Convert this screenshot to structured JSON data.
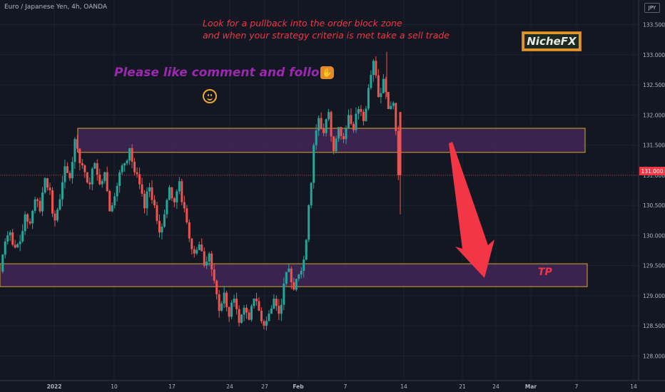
{
  "header": {
    "symbol": "Euro / Japanese Yen, 4h, OANDA",
    "currency": "JPY"
  },
  "annotations": {
    "pullback_line1": "Look for a pullback into the order block zone",
    "pullback_line2": "and when your strategy criteria is met take a sell trade",
    "like_text": "Please like comment and follow",
    "brand": "NicheFX",
    "tp_label": "TP",
    "thumb_icon": "thumbs-up-icon",
    "smiley_icon": "smiley-icon"
  },
  "colors": {
    "background": "#131722",
    "up": "#26a69a",
    "down": "#ef5350",
    "zone_fill": "#4a2860",
    "zone_border": "#d9a62b",
    "arrow": "#f23645",
    "price_line": "#f23645",
    "grid": "#1e222d",
    "axis_text": "#b2b5be"
  },
  "chart_data": {
    "type": "candlestick",
    "title": "Euro / Japanese Yen, 4h, OANDA",
    "x_tick_labels": [
      "2022",
      "10",
      "17",
      "24",
      "27",
      "Feb",
      "7",
      "14",
      "21",
      "24",
      "Mar",
      "7",
      "14"
    ],
    "y_tick_labels": [
      "133.500",
      "133.000",
      "132.500",
      "132.000",
      "131.500",
      "131.000",
      "130.500",
      "130.000",
      "129.500",
      "129.000",
      "128.500",
      "128.000"
    ],
    "ylim": [
      127.85,
      133.65
    ],
    "current_price": 131.0,
    "current_price_label": "131.000",
    "zones": [
      {
        "name": "order block zone",
        "top": 131.78,
        "bottom": 131.38
      },
      {
        "name": "TP zone",
        "top": 129.53,
        "bottom": 129.15
      }
    ],
    "prices_approx": [
      [
        129.4,
        129.9
      ],
      [
        129.9,
        130.05
      ],
      [
        130.05,
        129.8
      ],
      [
        129.8,
        129.9
      ],
      [
        129.9,
        130.35
      ],
      [
        130.35,
        130.2
      ],
      [
        130.2,
        130.6
      ],
      [
        130.6,
        130.4
      ],
      [
        130.4,
        130.95
      ],
      [
        130.95,
        130.75
      ],
      [
        130.75,
        130.25
      ],
      [
        130.25,
        130.6
      ],
      [
        130.6,
        131.15
      ],
      [
        131.15,
        130.95
      ],
      [
        130.95,
        131.6
      ],
      [
        131.6,
        131.2
      ],
      [
        131.2,
        131.05
      ],
      [
        131.05,
        130.85
      ],
      [
        130.85,
        131.2
      ],
      [
        131.2,
        130.85
      ],
      [
        130.85,
        131.05
      ],
      [
        131.05,
        130.4
      ],
      [
        130.4,
        130.65
      ],
      [
        130.65,
        131.05
      ],
      [
        131.05,
        131.2
      ],
      [
        131.2,
        131.45
      ],
      [
        131.45,
        131.05
      ],
      [
        131.05,
        130.85
      ],
      [
        130.85,
        130.45
      ],
      [
        130.45,
        130.8
      ],
      [
        130.8,
        130.5
      ],
      [
        130.5,
        130.05
      ],
      [
        130.05,
        130.35
      ],
      [
        130.35,
        130.8
      ],
      [
        130.8,
        130.55
      ],
      [
        130.55,
        130.9
      ],
      [
        130.9,
        130.45
      ],
      [
        130.45,
        129.95
      ],
      [
        129.95,
        129.7
      ],
      [
        129.7,
        129.85
      ],
      [
        129.85,
        129.5
      ],
      [
        129.5,
        129.7
      ],
      [
        129.7,
        129.25
      ],
      [
        129.25,
        128.75
      ],
      [
        128.75,
        129.05
      ],
      [
        129.05,
        128.65
      ],
      [
        128.65,
        128.95
      ],
      [
        128.95,
        128.55
      ],
      [
        128.55,
        128.8
      ],
      [
        128.8,
        128.6
      ],
      [
        128.6,
        128.95
      ],
      [
        128.95,
        128.75
      ],
      [
        128.75,
        128.5
      ],
      [
        128.5,
        128.7
      ],
      [
        128.7,
        128.95
      ],
      [
        128.95,
        128.7
      ],
      [
        128.7,
        129.2
      ],
      [
        129.2,
        129.45
      ],
      [
        129.45,
        129.1
      ],
      [
        129.1,
        129.35
      ],
      [
        129.35,
        129.6
      ],
      [
        129.6,
        130.5
      ],
      [
        130.5,
        131.5
      ],
      [
        131.5,
        131.95
      ],
      [
        131.95,
        131.7
      ],
      [
        131.7,
        132.05
      ],
      [
        132.05,
        131.4
      ],
      [
        131.4,
        131.8
      ],
      [
        131.8,
        131.6
      ],
      [
        131.6,
        132.0
      ],
      [
        132.0,
        131.75
      ],
      [
        131.75,
        132.1
      ],
      [
        132.1,
        131.9
      ],
      [
        131.9,
        132.45
      ],
      [
        132.45,
        132.9
      ],
      [
        132.9,
        132.3
      ],
      [
        132.3,
        132.6
      ],
      [
        132.6,
        132.1
      ],
      [
        132.1,
        132.2
      ],
      [
        132.2,
        131.0
      ]
    ]
  }
}
